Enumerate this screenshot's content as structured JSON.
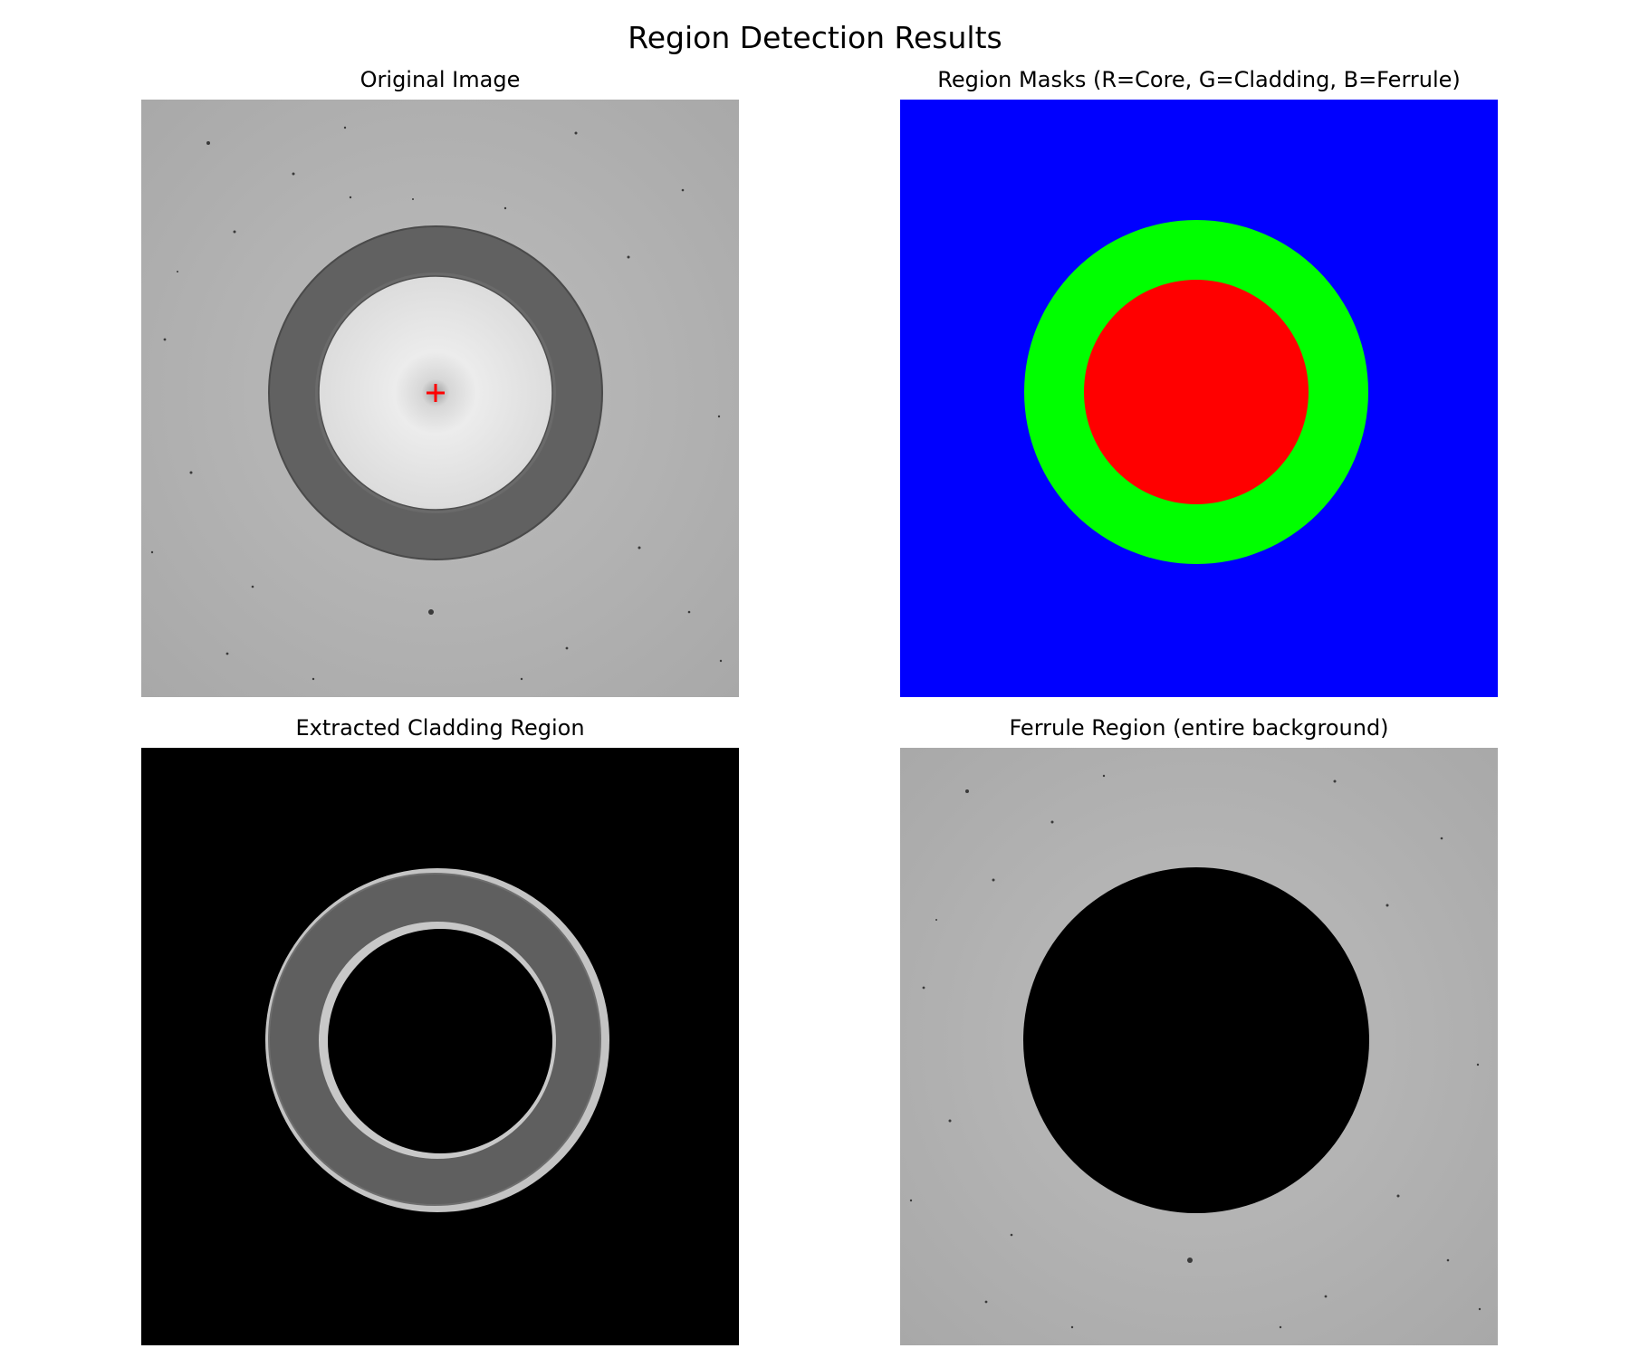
{
  "figure": {
    "title": "Region Detection Results"
  },
  "panels": [
    {
      "title": "Original Image",
      "content": "grayscale micrograph of fiber end-face with dark cladding ring, bright core and red center cross marker"
    },
    {
      "title": "Region Masks (R=Core, G=Cladding, B=Ferrule)",
      "content": "color mask: red core disk, green cladding ring, blue ferrule background"
    },
    {
      "title": "Extracted Cladding Region",
      "content": "cladding ring only, surroundings black"
    },
    {
      "title": "Ferrule Region (entire background)",
      "content": "ferrule background only, fiber disk black"
    }
  ],
  "colors": {
    "core_mask": "#ff0000",
    "cladding_mask": "#00ff00",
    "ferrule_mask": "#0000ff",
    "center_marker": "#ff0000",
    "ferrule_gray": "#ababab",
    "cladding_gray": "#606060",
    "masked_out": "#000000"
  }
}
